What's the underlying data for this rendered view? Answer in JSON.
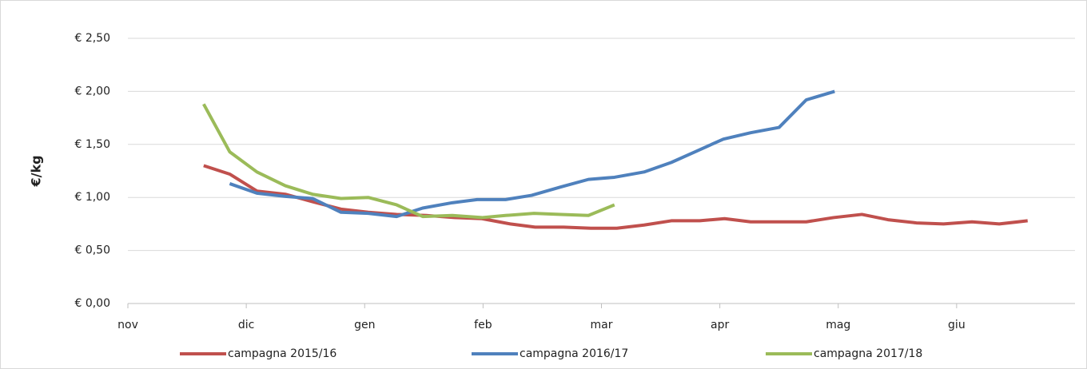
{
  "chart_data": {
    "type": "line",
    "y_label": "€/kg",
    "xlim": [
      0,
      8
    ],
    "xticks": [
      {
        "value": 0,
        "label": "nov"
      },
      {
        "value": 1,
        "label": "dic"
      },
      {
        "value": 2,
        "label": "gen"
      },
      {
        "value": 3,
        "label": "feb"
      },
      {
        "value": 4,
        "label": "mar"
      },
      {
        "value": 5,
        "label": "apr"
      },
      {
        "value": 6,
        "label": "mag"
      },
      {
        "value": 7,
        "label": "giu"
      }
    ],
    "ylim": [
      0,
      2.5
    ],
    "yticks": [
      {
        "value": 0,
        "label": "€ 0,00"
      },
      {
        "value": 0.5,
        "label": "€ 0,50"
      },
      {
        "value": 1,
        "label": "€ 1,00"
      },
      {
        "value": 1.5,
        "label": "€ 1,50"
      },
      {
        "value": 2,
        "label": "€ 2,00"
      },
      {
        "value": 2.5,
        "label": "€ 2,50"
      }
    ],
    "grid": true,
    "legend": "bottom",
    "series": [
      {
        "name": "campagna 2015/16",
        "color": "#c0504d",
        "x": [
          0.64,
          0.86,
          1.09,
          1.33,
          1.56,
          1.8,
          2.03,
          2.27,
          2.52,
          2.76,
          2.99,
          3.23,
          3.44,
          3.68,
          3.91,
          4.13,
          4.36,
          4.59,
          4.83,
          5.04,
          5.26,
          5.5,
          5.73,
          5.96,
          6.2,
          6.42,
          6.66,
          6.89,
          7.13,
          7.36,
          7.6
        ],
        "values": [
          1.3,
          1.22,
          1.06,
          1.03,
          0.96,
          0.89,
          0.86,
          0.84,
          0.83,
          0.81,
          0.8,
          0.75,
          0.72,
          0.72,
          0.71,
          0.71,
          0.74,
          0.78,
          0.78,
          0.8,
          0.77,
          0.77,
          0.77,
          0.81,
          0.84,
          0.79,
          0.76,
          0.75,
          0.77,
          0.75,
          0.78
        ]
      },
      {
        "name": "campagna 2016/17",
        "color": "#4f81bd",
        "x": [
          0.86,
          1.09,
          1.33,
          1.56,
          1.8,
          2.03,
          2.27,
          2.49,
          2.74,
          2.95,
          3.19,
          3.41,
          3.66,
          3.89,
          4.11,
          4.36,
          4.59,
          4.81,
          5.03,
          5.26,
          5.5,
          5.73,
          5.97
        ],
        "values": [
          1.13,
          1.04,
          1.01,
          0.99,
          0.86,
          0.85,
          0.82,
          0.9,
          0.95,
          0.98,
          0.98,
          1.02,
          1.1,
          1.17,
          1.19,
          1.24,
          1.33,
          1.44,
          1.55,
          1.61,
          1.66,
          1.92,
          2.0
        ]
      },
      {
        "name": "campagna 2017/18",
        "color": "#9bbb59",
        "x": [
          0.64,
          0.86,
          1.09,
          1.33,
          1.56,
          1.8,
          2.03,
          2.27,
          2.49,
          2.74,
          2.99,
          3.19,
          3.43,
          3.66,
          3.89,
          4.11
        ],
        "values": [
          1.88,
          1.43,
          1.24,
          1.11,
          1.03,
          0.99,
          1.0,
          0.93,
          0.82,
          0.83,
          0.81,
          0.83,
          0.85,
          0.84,
          0.83,
          0.93
        ]
      }
    ]
  }
}
